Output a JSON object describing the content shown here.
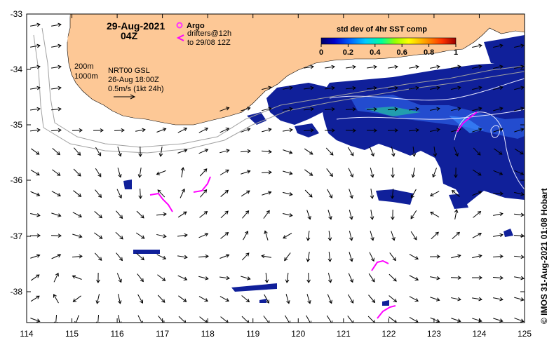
{
  "title": {
    "date": "29-Aug-2021",
    "time": "04Z"
  },
  "legend_floats": {
    "argo_label": "Argo",
    "drifters_line1": "drifters@12h",
    "drifters_line2": "to 29/08 12Z",
    "argo_color": "#ff33ff",
    "drifter_color": "#ff00ff"
  },
  "colorbar": {
    "title": "std dev of 4hr SST comp",
    "ticks": [
      "0",
      "0.2",
      "0.4",
      "0.6",
      "0.8",
      "1"
    ],
    "colors": [
      "#000066",
      "#0000cc",
      "#0066ff",
      "#00ccff",
      "#00ff99",
      "#99ff00",
      "#ffff00",
      "#ff9900",
      "#ff3300",
      "#990000"
    ]
  },
  "info": {
    "depth_200": "200m",
    "depth_1000": "1000m",
    "model": "NRT00 GSL",
    "model_time": "26-Aug 18:00Z",
    "scale": "0.5m/s (1kt 24h)"
  },
  "credit": "© IMOS 31-Aug-2021 01:08 Hobart",
  "axes": {
    "x_ticks": [
      "114",
      "115",
      "116",
      "117",
      "118",
      "119",
      "120",
      "121",
      "122",
      "123",
      "124",
      "125"
    ],
    "y_ticks": [
      "-33",
      "-34",
      "-35",
      "-36",
      "-37",
      "-38"
    ]
  },
  "colors": {
    "land": "#fdc896",
    "sst_dark": "#0a1a8c",
    "sst_mid": "#1f4fd6",
    "sst_light": "#3a8cff",
    "frame": "#000000"
  }
}
